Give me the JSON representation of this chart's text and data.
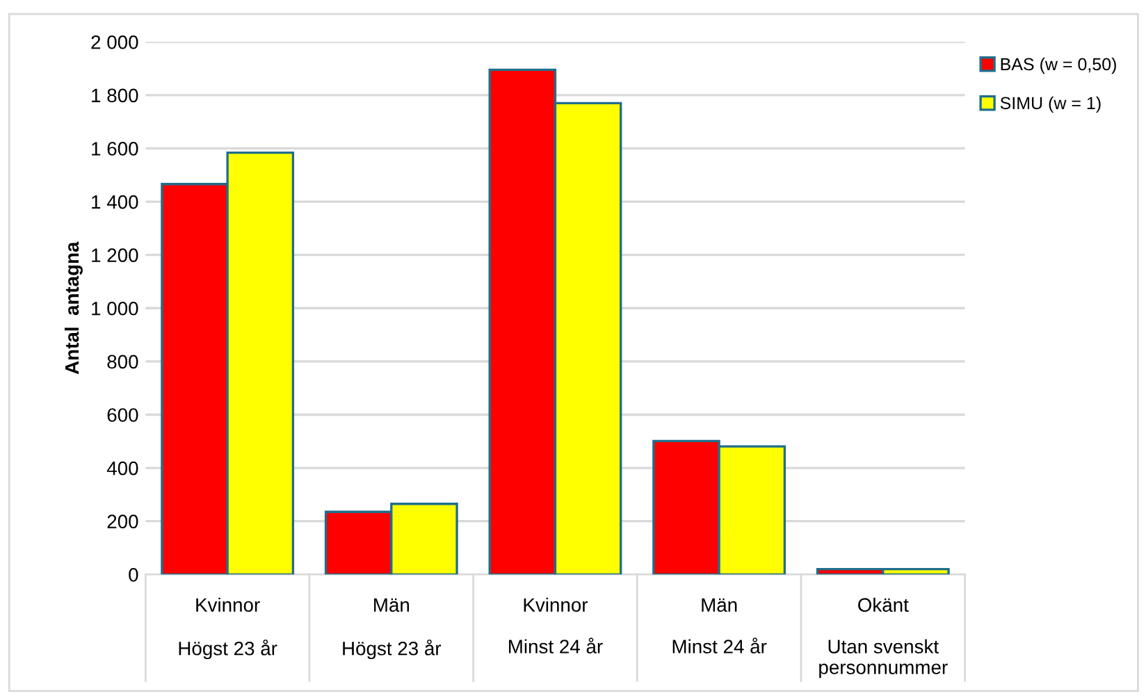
{
  "chart_data": {
    "type": "bar",
    "ylabel": "Antal  antagna",
    "categories": [
      "Kvinnor\n\nHögst 23 år",
      "Män\n\nHögst 23 år",
      "Kvinnor\n\nMinst 24 år",
      "Män\n\nMinst 24 år",
      "Okänt\n\nUtan svenskt\npersonnummer"
    ],
    "series": [
      {
        "name": "BAS (w = 0,50)",
        "color": "#ff0000",
        "values": [
          1466,
          235,
          1895,
          501,
          20
        ]
      },
      {
        "name": "SIMU (w = 1)",
        "color": "#ffff00",
        "values": [
          1584,
          265,
          1770,
          481,
          20
        ]
      }
    ],
    "ylim": [
      0,
      2000
    ],
    "yticks": [
      {
        "value": 0,
        "label": "0"
      },
      {
        "value": 200,
        "label": "200"
      },
      {
        "value": 400,
        "label": "400"
      },
      {
        "value": 600,
        "label": "600"
      },
      {
        "value": 800,
        "label": "800"
      },
      {
        "value": 1000,
        "label": "1 000"
      },
      {
        "value": 1200,
        "label": "1 200"
      },
      {
        "value": 1400,
        "label": "1 400"
      },
      {
        "value": 1600,
        "label": "1 600"
      },
      {
        "value": 1800,
        "label": "1 800"
      },
      {
        "value": 2000,
        "label": "2 000"
      }
    ],
    "grid": "y",
    "legend": "top right"
  }
}
